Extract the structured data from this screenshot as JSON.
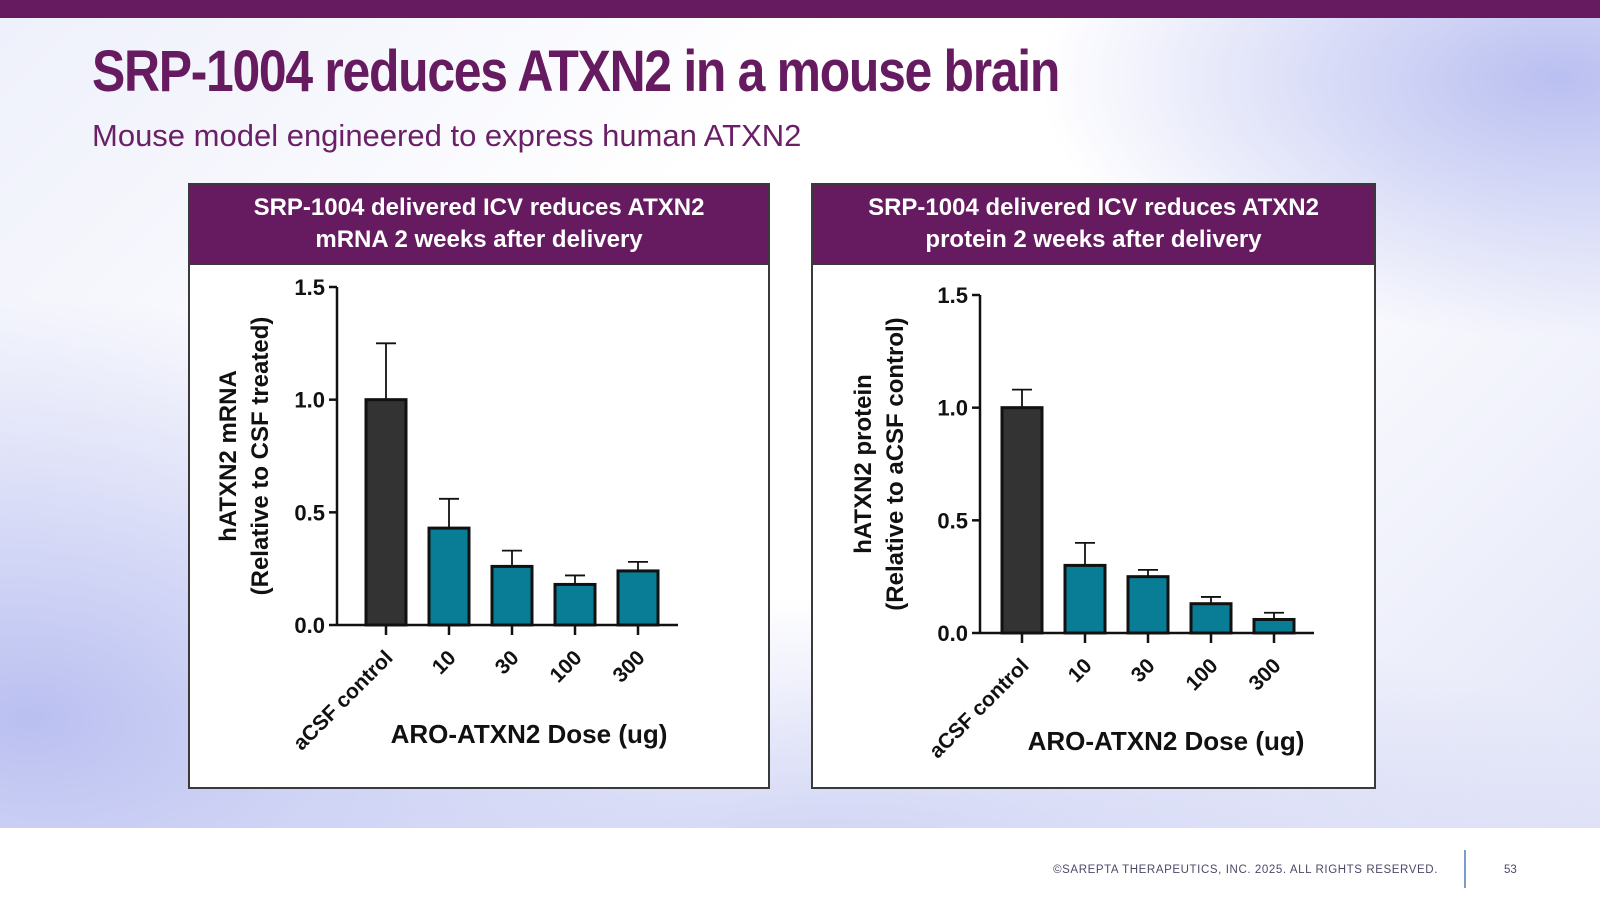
{
  "slide": {
    "title": "SRP-1004 reduces ATXN2 in a mouse brain",
    "subtitle": "Mouse model engineered to express human ATXN2",
    "footer": "©SAREPTA THERAPEUTICS, INC. 2025.  ALL RIGHTS RESERVED.",
    "page_number": "53"
  },
  "colors": {
    "brand_purple": "#661a60",
    "control_bar": "#333333",
    "treated_bar": "#0a7d96"
  },
  "panels": [
    {
      "header_line1": "SRP-1004 delivered ICV reduces ATXN2",
      "header_line2": "mRNA 2 weeks after delivery"
    },
    {
      "header_line1": "SRP-1004 delivered ICV reduces ATXN2",
      "header_line2": "protein 2 weeks after delivery"
    }
  ],
  "chart_data": [
    {
      "type": "bar",
      "categories": [
        "aCSF control",
        "10",
        "30",
        "100",
        "300"
      ],
      "values": [
        1.0,
        0.43,
        0.26,
        0.18,
        0.24
      ],
      "error_bars": [
        0.25,
        0.13,
        0.07,
        0.04,
        0.04
      ],
      "ylabel_line1": "hATXN2 mRNA",
      "ylabel_line2": "(Relative to CSF treated)",
      "xlabel": "ARO-ATXN2 Dose (ug)",
      "ylim": [
        0,
        1.5
      ],
      "yticks": [
        "0.0",
        "0.5",
        "1.0",
        "1.5"
      ],
      "bar_colors": [
        "#333333",
        "#0a7d96",
        "#0a7d96",
        "#0a7d96",
        "#0a7d96"
      ]
    },
    {
      "type": "bar",
      "categories": [
        "aCSF control",
        "10",
        "30",
        "100",
        "300"
      ],
      "values": [
        1.0,
        0.3,
        0.25,
        0.13,
        0.06
      ],
      "error_bars": [
        0.08,
        0.1,
        0.03,
        0.03,
        0.03
      ],
      "ylabel_line1": "hATXN2 protein",
      "ylabel_line2": "(Relative to aCSF control)",
      "xlabel": "ARO-ATXN2 Dose (ug)",
      "ylim": [
        0,
        1.5
      ],
      "yticks": [
        "0.0",
        "0.5",
        "1.0",
        "1.5"
      ],
      "bar_colors": [
        "#333333",
        "#0a7d96",
        "#0a7d96",
        "#0a7d96",
        "#0a7d96"
      ]
    }
  ]
}
